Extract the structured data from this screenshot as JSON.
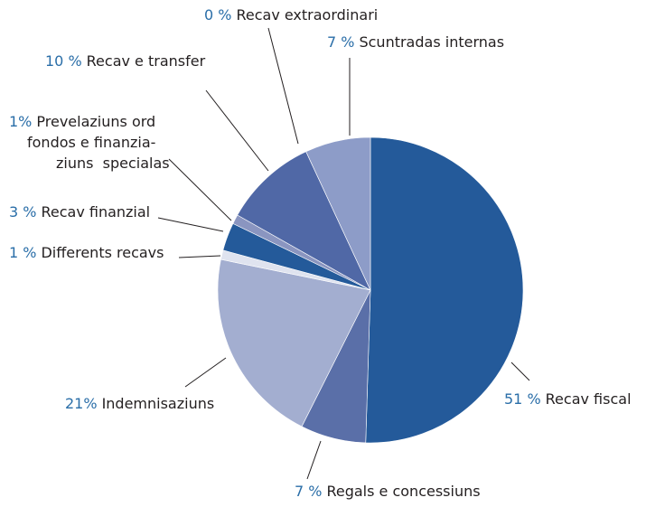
{
  "chart_data": {
    "type": "pie",
    "categories": [
      "Recav fiscal",
      "Regals e concessiuns",
      "Indemnisaziuns",
      "Differents recavs",
      "Recav finanzial",
      "Prevelaziuns ord\nfondos e finanzia-\nziuns  specialas",
      "Recav e transfer",
      "Recav extraordinari",
      "Scuntradas internas"
    ],
    "values": [
      51,
      7,
      21,
      1,
      3,
      1,
      10,
      0,
      7
    ],
    "value_labels": [
      "51 %",
      "7 %",
      "21%",
      "1 %",
      "3 %",
      "1%",
      "10 %",
      "0 %",
      "7 %"
    ],
    "colors": [
      "#245a9a",
      "#5a6fa8",
      "#a3aed0",
      "#dfe3ef",
      "#245a9a",
      "#8a95c0",
      "#5068a6",
      "#5068a6",
      "#8d9cc8"
    ]
  }
}
